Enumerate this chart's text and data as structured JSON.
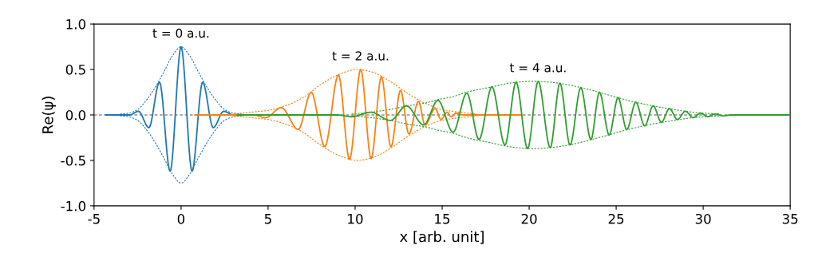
{
  "chart_data": {
    "type": "line",
    "xlabel": "x [arb. unit]",
    "ylabel": "Re(ψ)",
    "xlim": [
      -5,
      35
    ],
    "xticks": [
      -5,
      0,
      5,
      10,
      15,
      20,
      25,
      30,
      35
    ],
    "ylim": [
      -1.0,
      1.0
    ],
    "yticks": [
      {
        "value": -1.0,
        "label": "-1.0"
      },
      {
        "value": -0.5,
        "label": "-0.5"
      },
      {
        "value": 0.0,
        "label": "0.0"
      },
      {
        "value": 0.5,
        "label": "0.5"
      },
      {
        "value": 1.0,
        "label": "1.0"
      }
    ],
    "grid": false,
    "legend": false,
    "marker": "none",
    "ref_lines": [
      {
        "axis": "y",
        "value": 0,
        "color": "#aaaaaa",
        "line_style": "dashed"
      }
    ],
    "annotations": [
      "t = 0 a.u.",
      "t = 2 a.u.",
      "t = 4 a.u."
    ],
    "series": [
      {
        "color": "#1f77b4",
        "line_style": "solid",
        "x": [
          -4.33,
          -2.95,
          -2.45,
          -1.85,
          -1.24,
          -0.63,
          0.0,
          0.63,
          1.24,
          1.85,
          2.45,
          3.0,
          3.5
        ],
        "values": [
          0,
          0,
          0.04,
          -0.14,
          0.36,
          -0.62,
          0.75,
          -0.62,
          0.36,
          -0.14,
          0.04,
          0,
          0
        ]
      },
      {
        "color": "#1f77b4",
        "line_style": "dashed",
        "x": [
          -3.5,
          -3.0,
          -2.5,
          -2.0,
          -1.5,
          -1.0,
          -0.5,
          0.0,
          0.5,
          1.0,
          1.5,
          2.0,
          2.5,
          3.0,
          3.5
        ],
        "values": [
          0.01,
          0.02,
          0.06,
          0.16,
          0.3,
          0.47,
          0.65,
          0.75,
          0.65,
          0.47,
          0.3,
          0.16,
          0.06,
          0.02,
          0.01
        ]
      },
      {
        "color": "#1f77b4",
        "line_style": "dashed",
        "x": [
          -3.5,
          -3.0,
          -2.5,
          -2.0,
          -1.5,
          -1.0,
          -0.5,
          0.0,
          0.5,
          1.0,
          1.5,
          2.0,
          2.5,
          3.0,
          3.5
        ],
        "values": [
          -0.01,
          -0.02,
          -0.06,
          -0.16,
          -0.3,
          -0.47,
          -0.65,
          -0.75,
          -0.65,
          -0.47,
          -0.3,
          -0.16,
          -0.06,
          -0.02,
          -0.01
        ]
      },
      {
        "color": "#ff7f0e",
        "line_style": "solid",
        "x": [
          0.8,
          4.2,
          4.85,
          5.76,
          6.73,
          7.48,
          8.26,
          9.04,
          9.68,
          10.32,
          10.92,
          11.51,
          12.06,
          12.61,
          13.09,
          13.64,
          14.02,
          14.6,
          14.94,
          15.29,
          15.52,
          15.8,
          16.2,
          19.5
        ],
        "values": [
          0,
          0,
          -0.03,
          0.08,
          -0.16,
          0.25,
          -0.35,
          0.44,
          -0.49,
          0.5,
          -0.48,
          0.42,
          -0.35,
          0.27,
          -0.21,
          0.15,
          -0.11,
          0.07,
          -0.05,
          0.03,
          -0.02,
          0.02,
          0,
          0
        ]
      },
      {
        "color": "#ff7f0e",
        "line_style": "dashed",
        "x": [
          3.0,
          4.0,
          5.0,
          6.0,
          7.0,
          8.0,
          9.0,
          10.1,
          11.0,
          12.0,
          13.0,
          14.0,
          15.0,
          16.0,
          17.0
        ],
        "values": [
          0.01,
          0.03,
          0.05,
          0.1,
          0.19,
          0.33,
          0.44,
          0.5,
          0.47,
          0.37,
          0.24,
          0.13,
          0.06,
          0.03,
          0.01
        ]
      },
      {
        "color": "#ff7f0e",
        "line_style": "dashed",
        "x": [
          3.0,
          4.0,
          5.0,
          6.0,
          7.0,
          8.0,
          9.0,
          10.1,
          11.0,
          12.0,
          13.0,
          14.0,
          15.0,
          16.0,
          17.0
        ],
        "values": [
          -0.01,
          -0.03,
          -0.05,
          -0.1,
          -0.19,
          -0.33,
          -0.44,
          -0.5,
          -0.47,
          -0.37,
          -0.24,
          -0.13,
          -0.06,
          -0.03,
          -0.01
        ]
      },
      {
        "color": "#2ca02c",
        "line_style": "solid",
        "x": [
          3.24,
          9.0,
          9.82,
          10.89,
          12.03,
          12.95,
          13.94,
          14.76,
          15.63,
          16.42,
          17.12,
          17.86,
          18.61,
          19.25,
          19.91,
          20.52,
          21.21,
          21.77,
          22.35,
          22.97,
          23.55,
          24.04,
          24.6,
          25.11,
          25.61,
          26.13,
          26.64,
          27.13,
          27.6,
          28.06,
          28.52,
          28.98,
          29.43,
          29.85,
          30.26,
          30.69,
          31.15,
          31.6,
          35.0
        ],
        "values": [
          0,
          0,
          -0.02,
          0.03,
          -0.06,
          0.1,
          -0.11,
          0.16,
          -0.19,
          0.24,
          -0.27,
          0.31,
          -0.33,
          0.36,
          -0.37,
          0.37,
          -0.36,
          0.35,
          -0.33,
          0.3,
          -0.27,
          0.25,
          -0.22,
          0.19,
          -0.16,
          0.14,
          -0.12,
          0.1,
          -0.08,
          0.07,
          -0.05,
          0.04,
          -0.03,
          0.02,
          -0.02,
          0.01,
          -0.01,
          0,
          0
        ]
      },
      {
        "color": "#2ca02c",
        "line_style": "dashed",
        "x": [
          9.8,
          10.9,
          12.0,
          13.0,
          14.0,
          14.8,
          15.6,
          16.4,
          17.1,
          17.9,
          18.6,
          19.3,
          20.2,
          21.2,
          22.0,
          23.0,
          24.0,
          25.1,
          26.1,
          27.1,
          28.0,
          29.0,
          30.0,
          31.0
        ],
        "values": [
          0.01,
          0.03,
          0.06,
          0.1,
          0.13,
          0.17,
          0.2,
          0.25,
          0.28,
          0.31,
          0.34,
          0.36,
          0.37,
          0.36,
          0.34,
          0.3,
          0.25,
          0.19,
          0.14,
          0.1,
          0.07,
          0.04,
          0.02,
          0.01
        ]
      },
      {
        "color": "#2ca02c",
        "line_style": "dashed",
        "x": [
          9.8,
          10.9,
          12.0,
          13.0,
          14.0,
          14.8,
          15.6,
          16.4,
          17.1,
          17.9,
          18.6,
          19.3,
          20.2,
          21.2,
          22.0,
          23.0,
          24.0,
          25.1,
          26.1,
          27.1,
          28.0,
          29.0,
          30.0,
          31.0
        ],
        "values": [
          -0.01,
          -0.03,
          -0.06,
          -0.1,
          -0.13,
          -0.17,
          -0.2,
          -0.25,
          -0.28,
          -0.31,
          -0.34,
          -0.36,
          -0.37,
          -0.36,
          -0.34,
          -0.3,
          -0.25,
          -0.19,
          -0.14,
          -0.1,
          -0.07,
          -0.04,
          -0.02,
          -0.01
        ]
      }
    ]
  }
}
